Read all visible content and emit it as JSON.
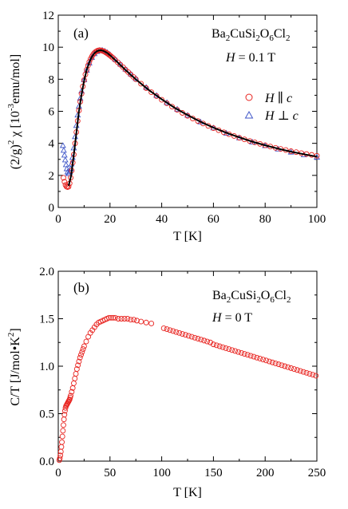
{
  "chart_data": [
    {
      "type": "scatter",
      "panel_label": "(a)",
      "compound": [
        "Ba",
        "2",
        "CuSi",
        "2",
        "O",
        "6",
        "Cl",
        "2"
      ],
      "field": {
        "symbol": "H",
        "rest": " = 0.1 T"
      },
      "xlabel": "T [K]",
      "ylabel_parts": {
        "pre": "(2/g)",
        "pre_sup": "2",
        "mid": " χ  [10",
        "mid_sup": "-3",
        "post": "emu/mol]"
      },
      "xlim": [
        0,
        100
      ],
      "ylim": [
        0,
        12
      ],
      "xticks": [
        0,
        20,
        40,
        60,
        80,
        100
      ],
      "yticks": [
        0,
        2,
        4,
        6,
        8,
        10,
        12
      ],
      "legend_position": "right",
      "colors": {
        "parallel": "#e8231f",
        "perp": "#4057c8",
        "fit": "#000000"
      },
      "series": [
        {
          "name": "H ∥ c",
          "legend": {
            "h": "H",
            "sym": " ∥ ",
            "c": "c"
          },
          "marker": "circle",
          "x": [
            2.0,
            2.4,
            2.8,
            3.2,
            3.6,
            4.0,
            4.4,
            4.8,
            5.2,
            5.6,
            6.0,
            6.5,
            7.0,
            7.5,
            8.0,
            8.5,
            9.0,
            9.5,
            10.0,
            10.5,
            11.0,
            11.5,
            12.0,
            12.5,
            13.0,
            13.5,
            14.0,
            14.5,
            15.0,
            15.5,
            16.0,
            16.5,
            17.0,
            17.5,
            18.0,
            18.5,
            19.0,
            19.5,
            20.0,
            20.5,
            21.0,
            22.0,
            23.0,
            24.0,
            25.0,
            26.0,
            27.0,
            28.0,
            29.0,
            30.0,
            32.0,
            34.0,
            36.0,
            38.0,
            40.0,
            42.0,
            44.0,
            46.0,
            48.0,
            50.0,
            52.0,
            54.0,
            56.0,
            58.0,
            60.0,
            62.0,
            64.0,
            66.0,
            68.0,
            70.0,
            72.0,
            74.0,
            76.0,
            78.0,
            80.0,
            82.0,
            84.0,
            86.0,
            88.0,
            90.0,
            92.0,
            94.0,
            96.0,
            98.0,
            100.0
          ],
          "y": [
            1.85,
            1.6,
            1.4,
            1.3,
            1.27,
            1.3,
            1.5,
            1.85,
            2.3,
            2.8,
            3.3,
            4.0,
            4.7,
            5.4,
            6.05,
            6.6,
            7.1,
            7.55,
            7.95,
            8.3,
            8.6,
            8.86,
            9.08,
            9.27,
            9.42,
            9.55,
            9.65,
            9.72,
            9.77,
            9.8,
            9.81,
            9.8,
            9.78,
            9.75,
            9.71,
            9.66,
            9.61,
            9.55,
            9.49,
            9.42,
            9.35,
            9.21,
            9.06,
            8.91,
            8.76,
            8.6,
            8.45,
            8.3,
            8.15,
            8.0,
            7.72,
            7.45,
            7.19,
            6.95,
            6.72,
            6.5,
            6.29,
            6.09,
            5.9,
            5.72,
            5.55,
            5.39,
            5.24,
            5.09,
            4.95,
            4.82,
            4.69,
            4.57,
            4.46,
            4.35,
            4.25,
            4.15,
            4.06,
            3.97,
            3.88,
            3.8,
            3.72,
            3.65,
            3.58,
            3.51,
            3.45,
            3.39,
            3.33,
            3.28,
            3.22
          ]
        },
        {
          "name": "H ⊥ c",
          "legend": {
            "h": "H",
            "sym": " ⊥ ",
            "c": "c"
          },
          "marker": "triangle",
          "x": [
            1.8,
            2.1,
            2.4,
            2.7,
            3.0,
            3.3,
            3.6,
            3.9,
            4.2,
            4.5,
            4.8,
            5.1,
            5.5,
            6.0,
            6.5,
            7.0,
            7.5,
            8.0,
            8.5,
            9.0,
            10.0,
            11.0,
            12.0,
            13.0,
            14.0,
            15.0,
            16.0,
            17.0,
            18.0,
            19.0,
            20.0,
            22.0,
            24.0,
            26.0,
            28.0,
            30.0,
            34.0,
            38.0,
            42.0,
            46.0,
            50.0,
            55.0,
            60.0,
            65.0,
            70.0,
            75.0,
            80.0,
            85.0,
            90.0,
            95.0,
            100.0
          ],
          "y": [
            3.85,
            3.55,
            3.25,
            2.95,
            2.65,
            2.4,
            2.2,
            2.1,
            2.1,
            2.2,
            2.4,
            2.7,
            3.1,
            3.7,
            4.4,
            5.1,
            5.75,
            6.3,
            6.8,
            7.25,
            7.95,
            8.55,
            9.0,
            9.35,
            9.58,
            9.72,
            9.79,
            9.8,
            9.74,
            9.65,
            9.53,
            9.24,
            8.93,
            8.62,
            8.32,
            8.03,
            7.48,
            6.98,
            6.53,
            6.12,
            5.74,
            5.32,
            4.95,
            4.62,
            4.33,
            4.07,
            3.84,
            3.63,
            3.44,
            3.27,
            3.12
          ]
        }
      ],
      "fit_curve": {
        "x": [
          4.0,
          5.0,
          6.0,
          7.0,
          8.0,
          9.0,
          10.0,
          11.0,
          12.0,
          13.0,
          14.0,
          15.0,
          16.0,
          17.0,
          18.0,
          19.0,
          20.0,
          22.0,
          24.0,
          26.0,
          28.0,
          30.0,
          35.0,
          40.0,
          45.0,
          50.0,
          55.0,
          60.0,
          65.0,
          70.0,
          75.0,
          80.0,
          85.0,
          90.0,
          95.0,
          100.0
        ],
        "y": [
          1.35,
          2.0,
          3.25,
          4.65,
          6.0,
          7.05,
          7.92,
          8.58,
          9.05,
          9.4,
          9.63,
          9.76,
          9.81,
          9.8,
          9.73,
          9.63,
          9.5,
          9.2,
          8.89,
          8.58,
          8.28,
          7.99,
          7.33,
          6.75,
          6.22,
          5.76,
          5.35,
          4.98,
          4.66,
          4.37,
          4.11,
          3.88,
          3.67,
          3.48,
          3.32,
          3.17
        ]
      }
    },
    {
      "type": "scatter",
      "panel_label": "(b)",
      "compound": [
        "Ba",
        "2",
        "CuSi",
        "2",
        "O",
        "6",
        "Cl",
        "2"
      ],
      "field": {
        "symbol": "H",
        "rest": " = 0 T"
      },
      "xlabel": "T [K]",
      "ylabel_parts": {
        "pre": "C/T [J/mol•K",
        "pre_sup": "2",
        "post": "]"
      },
      "xlim": [
        0,
        250
      ],
      "ylim": [
        0,
        2
      ],
      "xticks": [
        0,
        50,
        100,
        150,
        200,
        250
      ],
      "yticks": [
        0.0,
        0.5,
        1.0,
        1.5,
        2.0
      ],
      "yticklabels": [
        "0.0",
        "0.5",
        "1.0",
        "1.5",
        "2.0"
      ],
      "colors": {
        "points": "#e8231f"
      },
      "series": [
        {
          "marker": "circle",
          "x": [
            1.0,
            1.5,
            2.0,
            2.5,
            3.0,
            3.5,
            4.0,
            4.5,
            5.0,
            5.5,
            6.0,
            6.5,
            7.0,
            7.5,
            8.0,
            8.5,
            9.0,
            9.5,
            10.0,
            10.5,
            11.0,
            11.5,
            12.0,
            13.0,
            14.0,
            15.0,
            16.0,
            17.0,
            18.0,
            19.0,
            20.0,
            21.0,
            22.0,
            23.0,
            24.0,
            25.0,
            27.0,
            29.0,
            31.0,
            33.0,
            35.0,
            37.0,
            39.0,
            41.0,
            43.0,
            45.0,
            47.0,
            49.0,
            51.0,
            53.0,
            55.0,
            58.0,
            61.0,
            64.0,
            67.0,
            70.0,
            73.0,
            76.0,
            80.0,
            85.0,
            90.0,
            102.0,
            105.0,
            108.0,
            111.0,
            114.0,
            117.0,
            120.0,
            123.0,
            126.0,
            129.0,
            132.0,
            135.0,
            138.0,
            141.0,
            144.0,
            147.0,
            150.0,
            153.0,
            156.0,
            159.0,
            162.0,
            165.0,
            168.0,
            171.0,
            174.0,
            177.0,
            180.0,
            183.0,
            186.0,
            189.0,
            192.0,
            195.0,
            198.0,
            201.0,
            204.0,
            207.0,
            210.0,
            213.0,
            216.0,
            219.0,
            222.0,
            225.0,
            228.0,
            231.0,
            234.0,
            237.0,
            240.0,
            243.0,
            246.0,
            249.0
          ],
          "y": [
            0.01,
            0.03,
            0.06,
            0.1,
            0.15,
            0.2,
            0.26,
            0.32,
            0.38,
            0.44,
            0.49,
            0.53,
            0.56,
            0.58,
            0.59,
            0.6,
            0.61,
            0.62,
            0.63,
            0.64,
            0.65,
            0.67,
            0.69,
            0.73,
            0.77,
            0.82,
            0.87,
            0.92,
            0.97,
            1.01,
            1.05,
            1.09,
            1.12,
            1.15,
            1.18,
            1.21,
            1.26,
            1.31,
            1.35,
            1.38,
            1.41,
            1.44,
            1.46,
            1.47,
            1.48,
            1.49,
            1.5,
            1.51,
            1.51,
            1.51,
            1.51,
            1.5,
            1.5,
            1.5,
            1.5,
            1.49,
            1.49,
            1.48,
            1.47,
            1.46,
            1.45,
            1.4,
            1.39,
            1.38,
            1.37,
            1.36,
            1.35,
            1.34,
            1.33,
            1.32,
            1.31,
            1.3,
            1.29,
            1.28,
            1.27,
            1.26,
            1.25,
            1.23,
            1.22,
            1.21,
            1.2,
            1.19,
            1.18,
            1.17,
            1.16,
            1.15,
            1.14,
            1.13,
            1.12,
            1.11,
            1.1,
            1.09,
            1.08,
            1.07,
            1.06,
            1.05,
            1.04,
            1.03,
            1.02,
            1.01,
            1.0,
            0.99,
            0.98,
            0.97,
            0.96,
            0.95,
            0.94,
            0.93,
            0.92,
            0.91,
            0.9
          ]
        }
      ]
    }
  ]
}
